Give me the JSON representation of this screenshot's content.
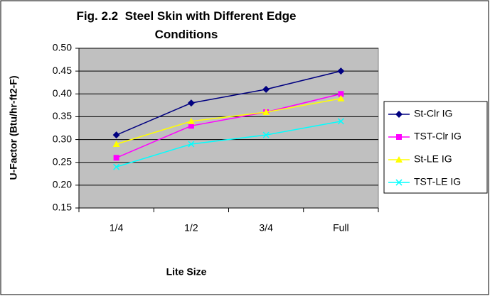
{
  "chart_data": {
    "type": "line",
    "title": "Fig. 2.2  Steel Skin with Different Edge Conditions",
    "x_label": "Lite Size",
    "y_label": "U-Factor (Btu/hr-ft2-F)",
    "categories": [
      "1/4",
      "1/2",
      "3/4",
      "Full"
    ],
    "series": [
      {
        "name": "St-Clr IG",
        "color": "#000080",
        "marker": "diamond",
        "values": [
          0.31,
          0.38,
          0.41,
          0.45
        ]
      },
      {
        "name": "TST-Clr IG",
        "color": "#FF00FF",
        "marker": "square",
        "values": [
          0.26,
          0.33,
          0.36,
          0.4
        ]
      },
      {
        "name": "St-LE IG",
        "color": "#FFFF00",
        "marker": "triangle",
        "values": [
          0.29,
          0.34,
          0.36,
          0.39
        ]
      },
      {
        "name": "TST-LE IG",
        "color": "#00FFFF",
        "marker": "x",
        "values": [
          0.24,
          0.29,
          0.31,
          0.34
        ]
      }
    ],
    "ylim": [
      0.15,
      0.5
    ],
    "yticks": [
      0.15,
      {
        "value": 0.2,
        "label": "0.20"
      },
      0.25,
      {
        "value": 0.3,
        "label": "0.30"
      },
      0.35,
      {
        "value": 0.4,
        "label": "0.40"
      },
      0.45,
      {
        "value": 0.5,
        "label": "0.50"
      }
    ],
    "grid": true,
    "legend": "right"
  }
}
